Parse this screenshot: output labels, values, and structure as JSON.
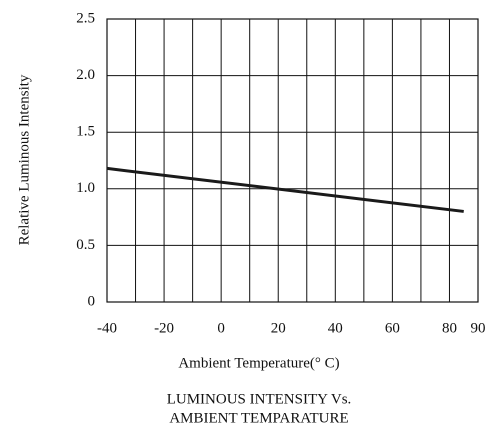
{
  "chart_data": {
    "type": "line",
    "title_lines": [
      "LUMINOUS INTENSITY Vs.",
      "AMBIENT TEMPARATURE"
    ],
    "xlabel": "Ambient Temperature(° C)",
    "ylabel": "Relative Luminous Intensity",
    "x": [
      -40,
      85
    ],
    "series": [
      {
        "color": "#1a1a1a",
        "values": [
          1.18,
          0.8
        ]
      }
    ],
    "xlim": [
      -40,
      90
    ],
    "xticks": [
      -40,
      -20,
      0,
      20,
      40,
      60,
      80,
      90
    ],
    "xminorticks": [
      -30,
      -10,
      10,
      30,
      50,
      70
    ],
    "ylim": [
      0,
      2.5
    ],
    "yticks": [
      0,
      0.5,
      {
        "value": 1,
        "label": "1.0"
      },
      1.5,
      {
        "value": 2,
        "label": "2.0"
      },
      2.5
    ],
    "grid": true
  }
}
